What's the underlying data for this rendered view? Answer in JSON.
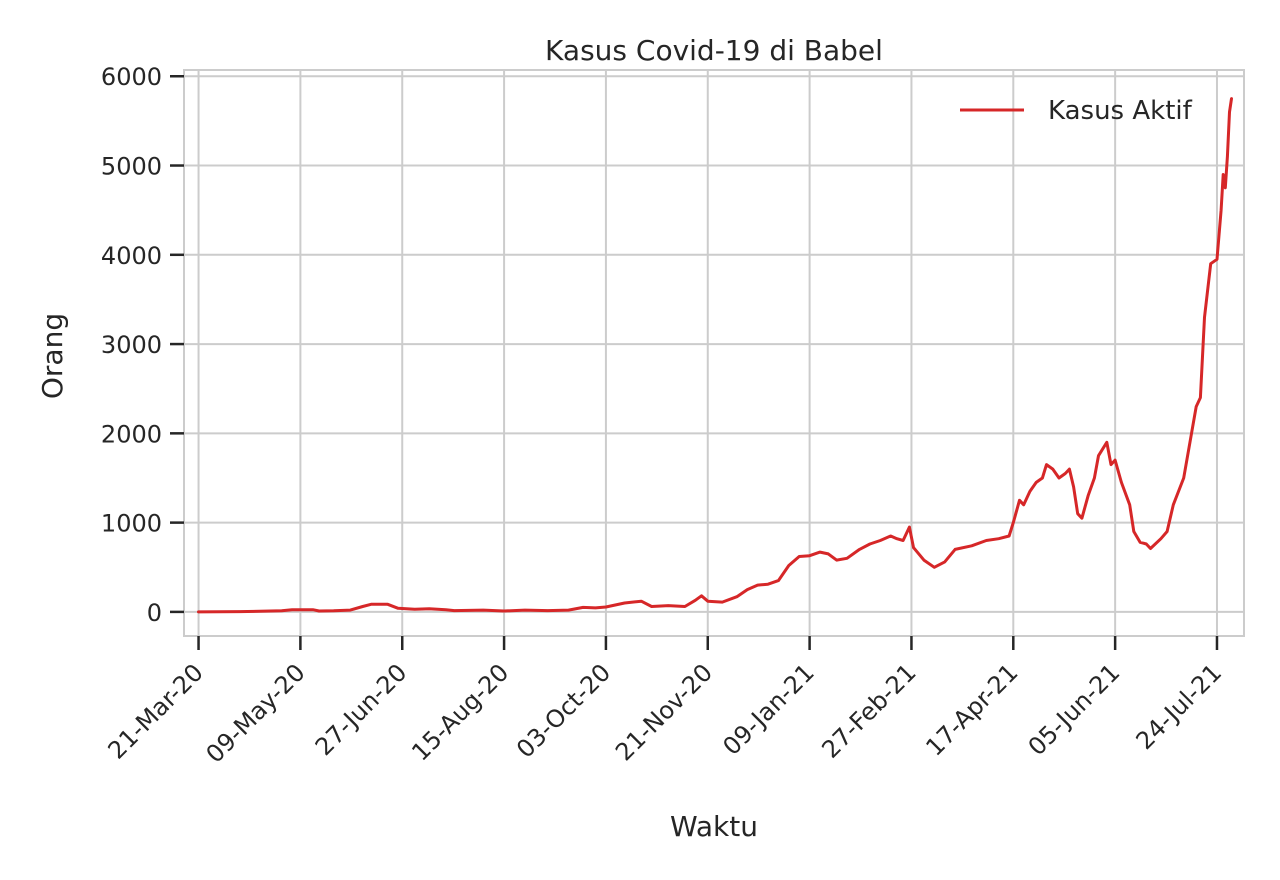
{
  "chart_data": {
    "type": "line",
    "title": "Kasus Covid-19 di Babel",
    "xlabel": "Waktu",
    "ylabel": "Orang",
    "x_start": "2020-03-21",
    "x_end": "2021-07-31",
    "xlim": [
      "2020-03-14",
      "2021-08-06"
    ],
    "ylim": [
      -270,
      6070
    ],
    "x_ticks": [
      "21-Mar-20",
      "09-May-20",
      "27-Jun-20",
      "15-Aug-20",
      "03-Oct-20",
      "21-Nov-20",
      "09-Jan-21",
      "27-Feb-21",
      "17-Apr-21",
      "05-Jun-21",
      "24-Jul-21"
    ],
    "y_ticks": [
      "0",
      "1000",
      "2000",
      "3000",
      "4000",
      "5000",
      "6000"
    ],
    "grid": true,
    "legend_position": "top-right",
    "line_color": "#d62728",
    "series": [
      {
        "name": "Kasus Aktif",
        "points": [
          [
            "2020-03-21",
            0
          ],
          [
            "2020-04-10",
            3
          ],
          [
            "2020-04-30",
            12
          ],
          [
            "2020-05-05",
            25
          ],
          [
            "2020-05-15",
            25
          ],
          [
            "2020-05-18",
            10
          ],
          [
            "2020-05-25",
            12
          ],
          [
            "2020-06-02",
            20
          ],
          [
            "2020-06-08",
            60
          ],
          [
            "2020-06-12",
            85
          ],
          [
            "2020-06-20",
            85
          ],
          [
            "2020-06-25",
            40
          ],
          [
            "2020-07-03",
            30
          ],
          [
            "2020-07-10",
            35
          ],
          [
            "2020-07-18",
            25
          ],
          [
            "2020-07-22",
            15
          ],
          [
            "2020-08-05",
            20
          ],
          [
            "2020-08-15",
            10
          ],
          [
            "2020-08-25",
            20
          ],
          [
            "2020-09-05",
            15
          ],
          [
            "2020-09-15",
            20
          ],
          [
            "2020-09-22",
            50
          ],
          [
            "2020-09-28",
            45
          ],
          [
            "2020-10-03",
            55
          ],
          [
            "2020-10-12",
            100
          ],
          [
            "2020-10-20",
            120
          ],
          [
            "2020-10-25",
            60
          ],
          [
            "2020-11-02",
            70
          ],
          [
            "2020-11-10",
            60
          ],
          [
            "2020-11-15",
            130
          ],
          [
            "2020-11-18",
            180
          ],
          [
            "2020-11-21",
            120
          ],
          [
            "2020-11-28",
            110
          ],
          [
            "2020-12-05",
            170
          ],
          [
            "2020-12-10",
            250
          ],
          [
            "2020-12-15",
            300
          ],
          [
            "2020-12-20",
            310
          ],
          [
            "2020-12-25",
            350
          ],
          [
            "2020-12-30",
            520
          ],
          [
            "2021-01-04",
            620
          ],
          [
            "2021-01-09",
            630
          ],
          [
            "2021-01-14",
            670
          ],
          [
            "2021-01-18",
            650
          ],
          [
            "2021-01-22",
            580
          ],
          [
            "2021-01-27",
            600
          ],
          [
            "2021-02-02",
            700
          ],
          [
            "2021-02-07",
            760
          ],
          [
            "2021-02-12",
            800
          ],
          [
            "2021-02-17",
            850
          ],
          [
            "2021-02-20",
            820
          ],
          [
            "2021-02-23",
            800
          ],
          [
            "2021-02-26",
            950
          ],
          [
            "2021-02-28",
            720
          ],
          [
            "2021-03-05",
            580
          ],
          [
            "2021-03-10",
            500
          ],
          [
            "2021-03-15",
            560
          ],
          [
            "2021-03-20",
            700
          ],
          [
            "2021-03-28",
            740
          ],
          [
            "2021-04-04",
            800
          ],
          [
            "2021-04-10",
            820
          ],
          [
            "2021-04-15",
            850
          ],
          [
            "2021-04-17",
            1000
          ],
          [
            "2021-04-20",
            1250
          ],
          [
            "2021-04-22",
            1200
          ],
          [
            "2021-04-25",
            1350
          ],
          [
            "2021-04-28",
            1450
          ],
          [
            "2021-05-01",
            1500
          ],
          [
            "2021-05-03",
            1650
          ],
          [
            "2021-05-06",
            1600
          ],
          [
            "2021-05-09",
            1500
          ],
          [
            "2021-05-12",
            1550
          ],
          [
            "2021-05-14",
            1600
          ],
          [
            "2021-05-16",
            1400
          ],
          [
            "2021-05-18",
            1100
          ],
          [
            "2021-05-20",
            1050
          ],
          [
            "2021-05-23",
            1300
          ],
          [
            "2021-05-26",
            1500
          ],
          [
            "2021-05-28",
            1750
          ],
          [
            "2021-06-01",
            1900
          ],
          [
            "2021-06-03",
            1650
          ],
          [
            "2021-06-05",
            1700
          ],
          [
            "2021-06-08",
            1450
          ],
          [
            "2021-06-12",
            1200
          ],
          [
            "2021-06-14",
            900
          ],
          [
            "2021-06-17",
            780
          ],
          [
            "2021-06-20",
            760
          ],
          [
            "2021-06-22",
            710
          ],
          [
            "2021-06-27",
            820
          ],
          [
            "2021-06-30",
            900
          ],
          [
            "2021-07-03",
            1200
          ],
          [
            "2021-07-08",
            1500
          ],
          [
            "2021-07-14",
            2300
          ],
          [
            "2021-07-16",
            2400
          ],
          [
            "2021-07-18",
            3300
          ],
          [
            "2021-07-21",
            3900
          ],
          [
            "2021-07-24",
            3950
          ],
          [
            "2021-07-26",
            4500
          ],
          [
            "2021-07-27",
            4900
          ],
          [
            "2021-07-28",
            4750
          ],
          [
            "2021-07-29",
            5100
          ],
          [
            "2021-07-30",
            5600
          ],
          [
            "2021-07-31",
            5750
          ]
        ]
      }
    ]
  }
}
